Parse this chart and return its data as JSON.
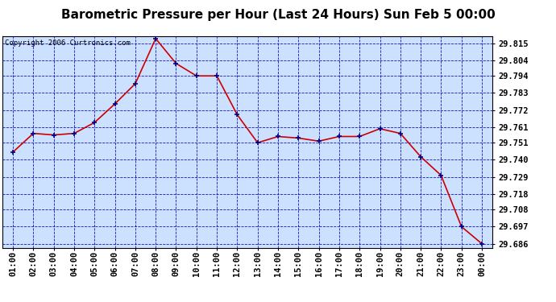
{
  "title": "Barometric Pressure per Hour (Last 24 Hours) Sun Feb 5 00:00",
  "copyright": "Copyright 2006 Curtronics.com",
  "x_labels": [
    "01:00",
    "02:00",
    "03:00",
    "04:00",
    "05:00",
    "06:00",
    "07:00",
    "08:00",
    "09:00",
    "10:00",
    "11:00",
    "12:00",
    "13:00",
    "14:00",
    "15:00",
    "16:00",
    "17:00",
    "18:00",
    "19:00",
    "20:00",
    "21:00",
    "22:00",
    "23:00",
    "00:00"
  ],
  "y_values": [
    29.745,
    29.757,
    29.756,
    29.757,
    29.764,
    29.776,
    29.789,
    29.818,
    29.802,
    29.794,
    29.794,
    29.769,
    29.751,
    29.755,
    29.754,
    29.752,
    29.755,
    29.755,
    29.76,
    29.757,
    29.742,
    29.73,
    29.697,
    29.686
  ],
  "ylim_min": 29.6835,
  "ylim_max": 29.8195,
  "yticks": [
    29.815,
    29.804,
    29.794,
    29.783,
    29.772,
    29.761,
    29.751,
    29.74,
    29.729,
    29.718,
    29.708,
    29.697,
    29.686
  ],
  "line_color": "#cc0000",
  "marker": "+",
  "marker_color": "#000088",
  "bg_color": "#cce0ff",
  "grid_color": "#0000bb",
  "title_fontsize": 11,
  "tick_fontsize": 7.5,
  "copyright_fontsize": 6.5
}
